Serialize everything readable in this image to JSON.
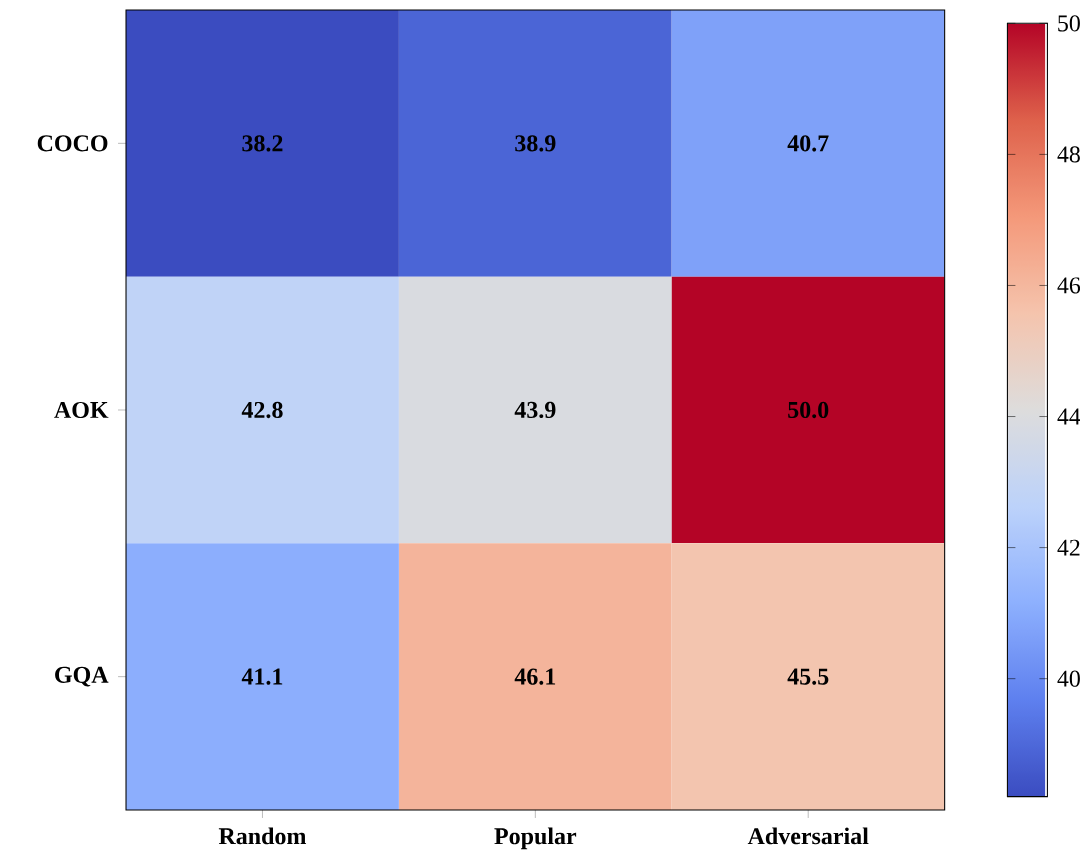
{
  "chart_data": {
    "type": "heatmap",
    "categories": [
      "Random",
      "Popular",
      "Adversarial"
    ],
    "y_categories": [
      "COCO",
      "AOK",
      "GQA"
    ],
    "cells": [
      [
        38.2,
        38.9,
        40.7
      ],
      [
        42.8,
        43.9,
        50.0
      ],
      [
        41.1,
        46.1,
        45.5
      ]
    ],
    "cell_labels": [
      [
        "38.2",
        "38.9",
        "40.7"
      ],
      [
        "42.8",
        "43.9",
        "50.0"
      ],
      [
        "41.1",
        "46.1",
        "45.5"
      ]
    ],
    "clim": [
      38.2,
      50
    ],
    "cticks": [
      40,
      42,
      44,
      46,
      48,
      50
    ]
  }
}
